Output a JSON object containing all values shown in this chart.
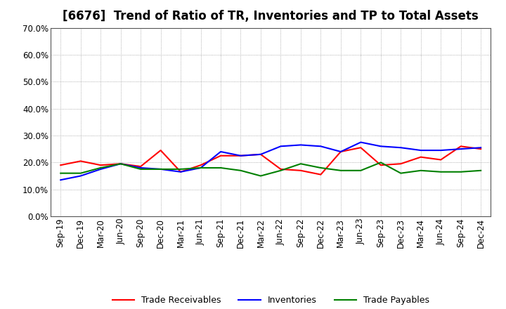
{
  "title": "[6676]  Trend of Ratio of TR, Inventories and TP to Total Assets",
  "labels": [
    "Sep-19",
    "Dec-19",
    "Mar-20",
    "Jun-20",
    "Sep-20",
    "Dec-20",
    "Mar-21",
    "Jun-21",
    "Sep-21",
    "Dec-21",
    "Mar-22",
    "Jun-22",
    "Sep-22",
    "Dec-22",
    "Mar-23",
    "Jun-23",
    "Sep-23",
    "Dec-23",
    "Mar-24",
    "Jun-24",
    "Sep-24",
    "Dec-24"
  ],
  "trade_receivables": [
    19.0,
    20.5,
    19.0,
    19.5,
    18.5,
    24.5,
    16.5,
    19.0,
    22.5,
    22.5,
    23.0,
    17.5,
    17.0,
    15.5,
    24.0,
    25.5,
    19.0,
    19.5,
    22.0,
    21.0,
    26.0,
    25.0
  ],
  "inventories": [
    13.5,
    15.0,
    17.5,
    19.5,
    18.0,
    17.5,
    16.5,
    18.0,
    24.0,
    22.5,
    23.0,
    26.0,
    26.5,
    26.0,
    24.0,
    27.5,
    26.0,
    25.5,
    24.5,
    24.5,
    25.0,
    25.5
  ],
  "trade_payables": [
    16.0,
    16.0,
    18.0,
    19.5,
    17.5,
    17.5,
    17.5,
    18.0,
    18.0,
    17.0,
    15.0,
    17.0,
    19.5,
    18.0,
    17.0,
    17.0,
    20.0,
    16.0,
    17.0,
    16.5,
    16.5,
    17.0
  ],
  "tr_color": "#ff0000",
  "inv_color": "#0000ff",
  "tp_color": "#008000",
  "ylim": [
    0.0,
    70.0
  ],
  "yticks": [
    0.0,
    10.0,
    20.0,
    30.0,
    40.0,
    50.0,
    60.0,
    70.0
  ],
  "bg_color": "#ffffff",
  "grid_color": "#aaaaaa",
  "title_fontsize": 12,
  "axis_fontsize": 8.5,
  "legend_fontsize": 9
}
